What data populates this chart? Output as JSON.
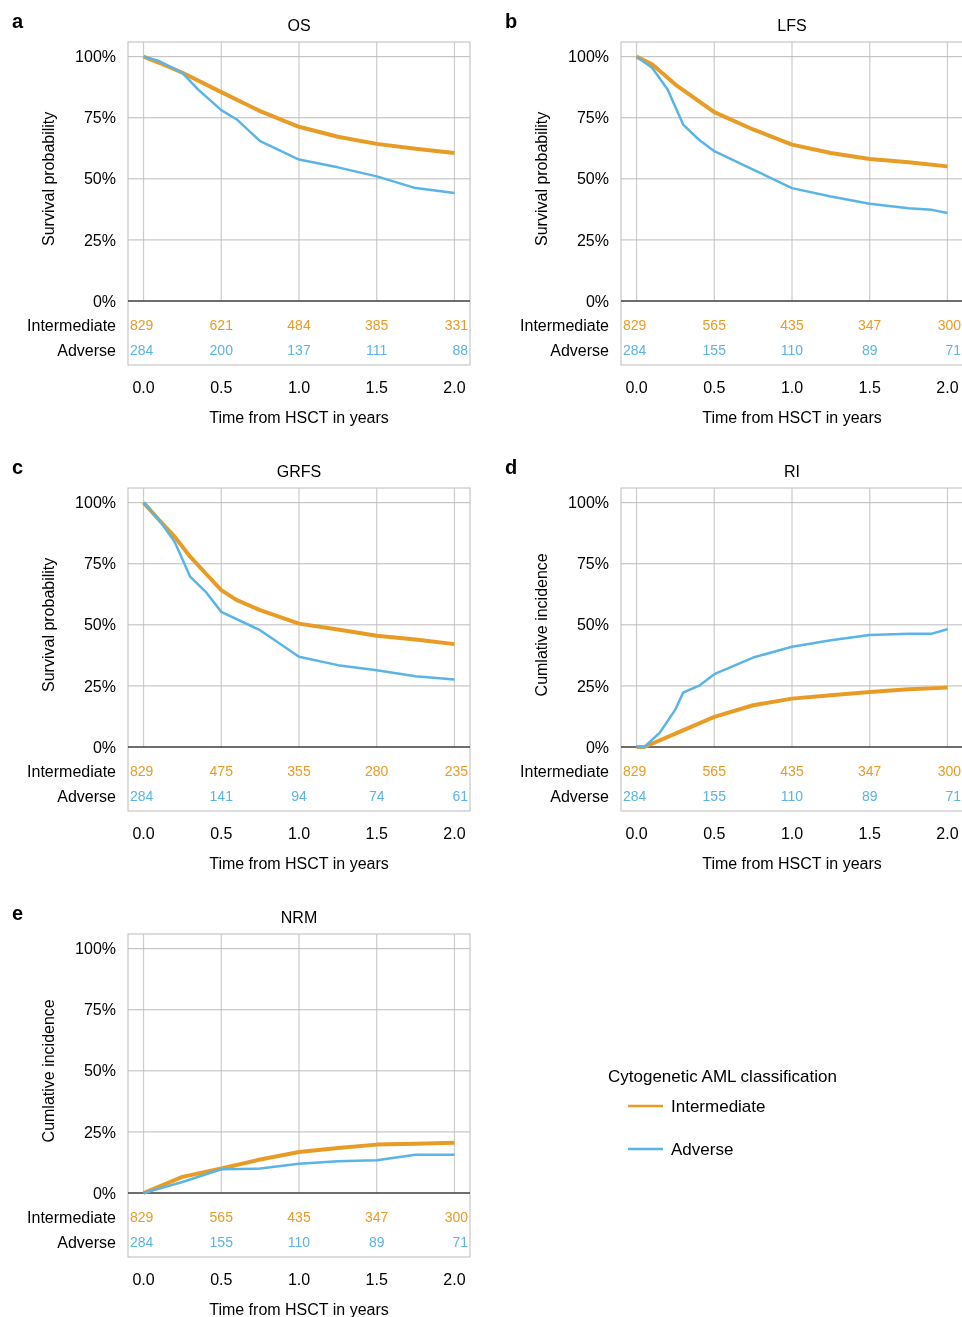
{
  "chart_data": [
    {
      "type": "line",
      "title": "OS",
      "ylabel": "Survival probability",
      "xlabel": "Time from HSCT in years",
      "xlim": [
        -0.1,
        2.1
      ],
      "ylim": [
        0,
        106
      ],
      "grid": true,
      "xticks": [
        {
          "value": 0,
          "label": "0.0"
        },
        {
          "value": 0.5,
          "label": "0.5"
        },
        {
          "value": 1,
          "label": "1.0"
        },
        {
          "value": 1.5,
          "label": "1.5"
        },
        {
          "value": 2,
          "label": "2.0"
        }
      ],
      "yticks": [
        {
          "value": 0,
          "label": "0%"
        },
        {
          "value": 25,
          "label": "25%"
        },
        {
          "value": 50,
          "label": "50%"
        },
        {
          "value": 75,
          "label": "75%"
        },
        {
          "value": 100,
          "label": "100%"
        }
      ],
      "series": [
        {
          "color": "#e89c25",
          "x": [
            0,
            0.1,
            0.25,
            0.5,
            0.75,
            1,
            1.25,
            1.5,
            1.75,
            2
          ],
          "values": [
            100,
            97.5,
            93.4,
            85.5,
            77.7,
            71.3,
            67.2,
            64.3,
            62.3,
            60.6
          ]
        },
        {
          "color": "#5ab4e5",
          "x": [
            0,
            0.1,
            0.25,
            0.35,
            0.5,
            0.6,
            0.75,
            1,
            1.25,
            1.5,
            1.75,
            2
          ],
          "values": [
            100,
            98.2,
            93.4,
            86.6,
            78.1,
            74.3,
            65.4,
            57.9,
            54.7,
            51,
            46.2,
            44.2
          ]
        }
      ],
      "annotations": [
        "a",
        "Intermediate",
        "Adverse",
        "829",
        "621",
        "484",
        "385",
        "331",
        "284",
        "200",
        "137",
        "111",
        "88"
      ]
    },
    {
      "type": "line",
      "title": "LFS",
      "ylabel": "Survival probability",
      "xlabel": "Time from HSCT in years",
      "xlim": [
        -0.1,
        2.1
      ],
      "ylim": [
        0,
        106
      ],
      "grid": true,
      "xticks": [
        {
          "value": 0,
          "label": "0.0"
        },
        {
          "value": 0.5,
          "label": "0.5"
        },
        {
          "value": 1,
          "label": "1.0"
        },
        {
          "value": 1.5,
          "label": "1.5"
        },
        {
          "value": 2,
          "label": "2.0"
        }
      ],
      "yticks": [
        {
          "value": 0,
          "label": "0%"
        },
        {
          "value": 25,
          "label": "25%"
        },
        {
          "value": 50,
          "label": "50%"
        },
        {
          "value": 75,
          "label": "75%"
        },
        {
          "value": 100,
          "label": "100%"
        }
      ],
      "series": [
        {
          "color": "#e89c25",
          "x": [
            0,
            0.1,
            0.25,
            0.5,
            0.75,
            1,
            1.25,
            1.5,
            1.75,
            2
          ],
          "values": [
            100,
            96.9,
            88.6,
            77.3,
            70.2,
            64,
            60.6,
            58.1,
            56.8,
            55.1
          ]
        },
        {
          "color": "#5ab4e5",
          "x": [
            0,
            0.1,
            0.2,
            0.3,
            0.4,
            0.5,
            0.75,
            1,
            1.25,
            1.5,
            1.75,
            1.9,
            2
          ],
          "values": [
            100,
            95.5,
            86.6,
            72.2,
            66.1,
            61.3,
            53.8,
            46.2,
            42.8,
            39.8,
            38,
            37.3,
            36
          ]
        }
      ],
      "annotations": [
        "b",
        "Intermediate",
        "Adverse",
        "829",
        "565",
        "435",
        "347",
        "300",
        "284",
        "155",
        "110",
        "89",
        "71"
      ]
    },
    {
      "type": "line",
      "title": "GRFS",
      "ylabel": "Survival probability",
      "xlabel": "Time from HSCT in years",
      "xlim": [
        -0.1,
        2.1
      ],
      "ylim": [
        0,
        106
      ],
      "grid": true,
      "xticks": [
        {
          "value": 0,
          "label": "0.0"
        },
        {
          "value": 0.5,
          "label": "0.5"
        },
        {
          "value": 1,
          "label": "1.0"
        },
        {
          "value": 1.5,
          "label": "1.5"
        },
        {
          "value": 2,
          "label": "2.0"
        }
      ],
      "yticks": [
        {
          "value": 0,
          "label": "0%"
        },
        {
          "value": 25,
          "label": "25%"
        },
        {
          "value": 50,
          "label": "50%"
        },
        {
          "value": 75,
          "label": "75%"
        },
        {
          "value": 100,
          "label": "100%"
        }
      ],
      "series": [
        {
          "color": "#e89c25",
          "x": [
            0,
            0.1,
            0.2,
            0.3,
            0.4,
            0.5,
            0.6,
            0.75,
            1,
            1.25,
            1.5,
            1.75,
            2
          ],
          "values": [
            100,
            92.9,
            86.1,
            77.9,
            71,
            64.2,
            60.1,
            56,
            50.5,
            48.1,
            45.5,
            44,
            42.1
          ]
        },
        {
          "color": "#5ab4e5",
          "x": [
            0,
            0.1,
            0.2,
            0.3,
            0.4,
            0.5,
            0.75,
            1,
            1.25,
            1.5,
            1.75,
            2
          ],
          "values": [
            100,
            92.9,
            84,
            69.7,
            63.5,
            55.3,
            47.8,
            36.9,
            33.5,
            31.4,
            29,
            27.6
          ]
        }
      ],
      "annotations": [
        "c",
        "Intermediate",
        "Adverse",
        "829",
        "475",
        "355",
        "280",
        "235",
        "284",
        "141",
        "94",
        "74",
        "61"
      ]
    },
    {
      "type": "line",
      "title": "RI",
      "ylabel": "Cumlative incidence",
      "xlabel": "Time from HSCT in years",
      "xlim": [
        -0.1,
        2.1
      ],
      "ylim": [
        0,
        106
      ],
      "grid": true,
      "xticks": [
        {
          "value": 0,
          "label": "0.0"
        },
        {
          "value": 0.5,
          "label": "0.5"
        },
        {
          "value": 1,
          "label": "1.0"
        },
        {
          "value": 1.5,
          "label": "1.5"
        },
        {
          "value": 2,
          "label": "2.0"
        }
      ],
      "yticks": [
        {
          "value": 0,
          "label": "0%"
        },
        {
          "value": 25,
          "label": "25%"
        },
        {
          "value": 50,
          "label": "50%"
        },
        {
          "value": 75,
          "label": "75%"
        },
        {
          "value": 100,
          "label": "100%"
        }
      ],
      "series": [
        {
          "color": "#e89c25",
          "x": [
            0,
            0.05,
            0.25,
            0.5,
            0.75,
            1,
            1.25,
            1.5,
            1.75,
            2
          ],
          "values": [
            0,
            0,
            5.5,
            12.3,
            17.1,
            19.8,
            21.2,
            22.5,
            23.6,
            24.3
          ]
        },
        {
          "color": "#5ab4e5",
          "x": [
            0,
            0.05,
            0.15,
            0.25,
            0.3,
            0.4,
            0.5,
            0.75,
            1,
            1.25,
            1.5,
            1.75,
            1.9,
            2
          ],
          "values": [
            0,
            0,
            5.9,
            15.4,
            22.3,
            25,
            29.8,
            36.6,
            41,
            43.7,
            45.8,
            46.4,
            46.4,
            48.2
          ]
        }
      ],
      "annotations": [
        "d",
        "Intermediate",
        "Adverse",
        "829",
        "565",
        "435",
        "347",
        "300",
        "284",
        "155",
        "110",
        "89",
        "71"
      ]
    },
    {
      "type": "line",
      "title": "NRM",
      "ylabel": "Cumlative incidence",
      "xlabel": "Time from HSCT in years",
      "xlim": [
        -0.1,
        2.1
      ],
      "ylim": [
        0,
        106
      ],
      "grid": true,
      "legend": "right",
      "legend_title": "Cytogenetic AML classification",
      "xticks": [
        {
          "value": 0,
          "label": "0.0"
        },
        {
          "value": 0.5,
          "label": "0.5"
        },
        {
          "value": 1,
          "label": "1.0"
        },
        {
          "value": 1.5,
          "label": "1.5"
        },
        {
          "value": 2,
          "label": "2.0"
        }
      ],
      "yticks": [
        {
          "value": 0,
          "label": "0%"
        },
        {
          "value": 25,
          "label": "25%"
        },
        {
          "value": 50,
          "label": "50%"
        },
        {
          "value": 75,
          "label": "75%"
        },
        {
          "value": 100,
          "label": "100%"
        }
      ],
      "series": [
        {
          "name": "Intermediate",
          "color": "#e89c25",
          "x": [
            0,
            0.25,
            0.5,
            0.75,
            1,
            1.25,
            1.5,
            1.75,
            2
          ],
          "values": [
            0,
            6.6,
            10,
            13.7,
            16.8,
            18.4,
            19.8,
            20.2,
            20.6
          ]
        },
        {
          "name": "Adverse",
          "color": "#5ab4e5",
          "x": [
            0,
            0.25,
            0.5,
            0.75,
            1,
            1.25,
            1.5,
            1.75,
            2
          ],
          "values": [
            0,
            4.5,
            9.7,
            10,
            12,
            13,
            13.4,
            15.7,
            15.7
          ]
        }
      ],
      "annotations": [
        "e",
        "Intermediate",
        "Adverse",
        "829",
        "565",
        "435",
        "347",
        "300",
        "284",
        "155",
        "110",
        "89",
        "71"
      ]
    }
  ]
}
